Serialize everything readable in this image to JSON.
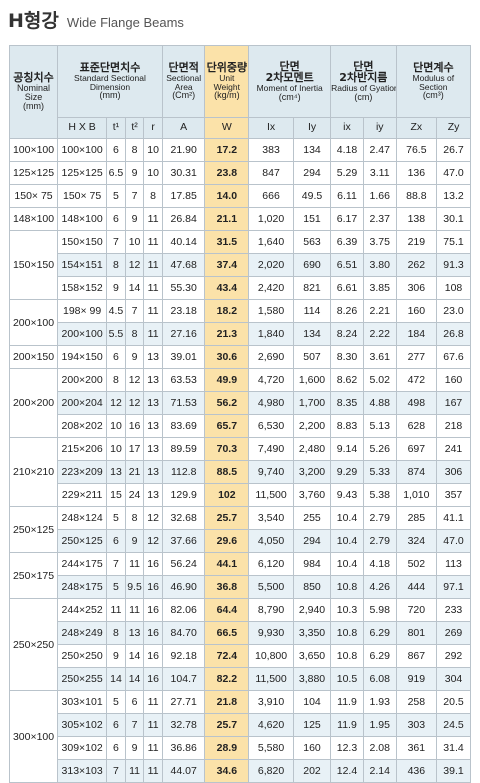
{
  "title": {
    "main": "H형강",
    "sub": "Wide Flange Beams"
  },
  "header": {
    "nominal": {
      "ko": "공칭치수",
      "en1": "Nominal",
      "en2": "Size",
      "unit": "(mm)"
    },
    "dimension": {
      "ko": "표준단면치수",
      "en1": "Standard Sectional",
      "en2": "Dimension",
      "unit": "(mm)"
    },
    "area": {
      "ko": "단면적",
      "en1": "Sectional",
      "en2": "Area",
      "unit": "(Cm²)"
    },
    "weight": {
      "ko": "단위중량",
      "en1": "Unit",
      "en2": "Weight",
      "unit": "(kg/m)"
    },
    "inertia": {
      "ko1": "단면",
      "ko2": "2차모멘트",
      "en": "Moment of Inertia",
      "unit": "(cm⁴)"
    },
    "gyration": {
      "ko1": "단면",
      "ko2": "2차반지름",
      "en": "Radius of Gyation",
      "unit": "(cm)"
    },
    "modulus": {
      "ko": "단면계수",
      "en1": "Modulus of",
      "en2": "Section",
      "unit": "(cm³)"
    },
    "sub": {
      "hxb": "H X B",
      "t1": "t¹",
      "t2": "t²",
      "r": "r",
      "a": "A",
      "w": "W",
      "ix": "Ix",
      "iy": "Iy",
      "rx": "ix",
      "ry": "iy",
      "zx": "Zx",
      "zy": "Zy"
    }
  },
  "groups": [
    {
      "nominal": "100×100",
      "rows": [
        [
          "100×100",
          "6",
          "8",
          "10",
          "21.90",
          "17.2",
          "383",
          "134",
          "4.18",
          "2.47",
          "76.5",
          "26.7"
        ]
      ]
    },
    {
      "nominal": "125×125",
      "rows": [
        [
          "125×125",
          "6.5",
          "9",
          "10",
          "30.31",
          "23.8",
          "847",
          "294",
          "5.29",
          "3.11",
          "136",
          "47.0"
        ]
      ]
    },
    {
      "nominal": "150× 75",
      "rows": [
        [
          "150× 75",
          "5",
          "7",
          "8",
          "17.85",
          "14.0",
          "666",
          "49.5",
          "6.11",
          "1.66",
          "88.8",
          "13.2"
        ]
      ]
    },
    {
      "nominal": "148×100",
      "rows": [
        [
          "148×100",
          "6",
          "9",
          "11",
          "26.84",
          "21.1",
          "1,020",
          "151",
          "6.17",
          "2.37",
          "138",
          "30.1"
        ]
      ]
    },
    {
      "nominal": "150×150",
      "rows": [
        [
          "150×150",
          "7",
          "10",
          "11",
          "40.14",
          "31.5",
          "1,640",
          "563",
          "6.39",
          "3.75",
          "219",
          "75.1"
        ],
        [
          "154×151",
          "8",
          "12",
          "11",
          "47.68",
          "37.4",
          "2,020",
          "690",
          "6.51",
          "3.80",
          "262",
          "91.3"
        ],
        [
          "158×152",
          "9",
          "14",
          "11",
          "55.30",
          "43.4",
          "2,420",
          "821",
          "6.61",
          "3.85",
          "306",
          "108"
        ]
      ]
    },
    {
      "nominal": "200×100",
      "rows": [
        [
          "198× 99",
          "4.5",
          "7",
          "11",
          "23.18",
          "18.2",
          "1,580",
          "114",
          "8.26",
          "2.21",
          "160",
          "23.0"
        ],
        [
          "200×100",
          "5.5",
          "8",
          "11",
          "27.16",
          "21.3",
          "1,840",
          "134",
          "8.24",
          "2.22",
          "184",
          "26.8"
        ]
      ]
    },
    {
      "nominal": "200×150",
      "rows": [
        [
          "194×150",
          "6",
          "9",
          "13",
          "39.01",
          "30.6",
          "2,690",
          "507",
          "8.30",
          "3.61",
          "277",
          "67.6"
        ]
      ]
    },
    {
      "nominal": "200×200",
      "rows": [
        [
          "200×200",
          "8",
          "12",
          "13",
          "63.53",
          "49.9",
          "4,720",
          "1,600",
          "8.62",
          "5.02",
          "472",
          "160"
        ],
        [
          "200×204",
          "12",
          "12",
          "13",
          "71.53",
          "56.2",
          "4,980",
          "1,700",
          "8.35",
          "4.88",
          "498",
          "167"
        ],
        [
          "208×202",
          "10",
          "16",
          "13",
          "83.69",
          "65.7",
          "6,530",
          "2,200",
          "8.83",
          "5.13",
          "628",
          "218"
        ]
      ]
    },
    {
      "nominal": "210×210",
      "rows": [
        [
          "215×206",
          "10",
          "17",
          "13",
          "89.59",
          "70.3",
          "7,490",
          "2,480",
          "9.14",
          "5.26",
          "697",
          "241"
        ],
        [
          "223×209",
          "13",
          "21",
          "13",
          "112.8",
          "88.5",
          "9,740",
          "3,200",
          "9.29",
          "5.33",
          "874",
          "306"
        ],
        [
          "229×211",
          "15",
          "24",
          "13",
          "129.9",
          "102",
          "11,500",
          "3,760",
          "9.43",
          "5.38",
          "1,010",
          "357"
        ]
      ]
    },
    {
      "nominal": "250×125",
      "rows": [
        [
          "248×124",
          "5",
          "8",
          "12",
          "32.68",
          "25.7",
          "3,540",
          "255",
          "10.4",
          "2.79",
          "285",
          "41.1"
        ],
        [
          "250×125",
          "6",
          "9",
          "12",
          "37.66",
          "29.6",
          "4,050",
          "294",
          "10.4",
          "2.79",
          "324",
          "47.0"
        ]
      ]
    },
    {
      "nominal": "250×175",
      "rows": [
        [
          "244×175",
          "7",
          "11",
          "16",
          "56.24",
          "44.1",
          "6,120",
          "984",
          "10.4",
          "4.18",
          "502",
          "113"
        ],
        [
          "248×175",
          "5",
          "9.5",
          "16",
          "46.90",
          "36.8",
          "5,500",
          "850",
          "10.8",
          "4.26",
          "444",
          "97.1"
        ]
      ]
    },
    {
      "nominal": "250×250",
      "rows": [
        [
          "244×252",
          "11",
          "11",
          "16",
          "82.06",
          "64.4",
          "8,790",
          "2,940",
          "10.3",
          "5.98",
          "720",
          "233"
        ],
        [
          "248×249",
          "8",
          "13",
          "16",
          "84.70",
          "66.5",
          "9,930",
          "3,350",
          "10.8",
          "6.29",
          "801",
          "269"
        ],
        [
          "250×250",
          "9",
          "14",
          "16",
          "92.18",
          "72.4",
          "10,800",
          "3,650",
          "10.8",
          "6.29",
          "867",
          "292"
        ],
        [
          "250×255",
          "14",
          "14",
          "16",
          "104.7",
          "82.2",
          "11,500",
          "3,880",
          "10.5",
          "6.08",
          "919",
          "304"
        ]
      ]
    },
    {
      "nominal": "300×100",
      "rows": [
        [
          "303×101",
          "5",
          "6",
          "11",
          "27.71",
          "21.8",
          "3,910",
          "104",
          "11.9",
          "1.93",
          "258",
          "20.5"
        ],
        [
          "305×102",
          "6",
          "7",
          "11",
          "32.78",
          "25.7",
          "4,620",
          "125",
          "11.9",
          "1.95",
          "303",
          "24.5"
        ],
        [
          "309×102",
          "6",
          "9",
          "11",
          "36.86",
          "28.9",
          "5,580",
          "160",
          "12.3",
          "2.08",
          "361",
          "31.4"
        ],
        [
          "313×103",
          "7",
          "11",
          "11",
          "44.07",
          "34.6",
          "6,820",
          "202",
          "12.4",
          "2.14",
          "436",
          "39.1"
        ]
      ]
    }
  ]
}
